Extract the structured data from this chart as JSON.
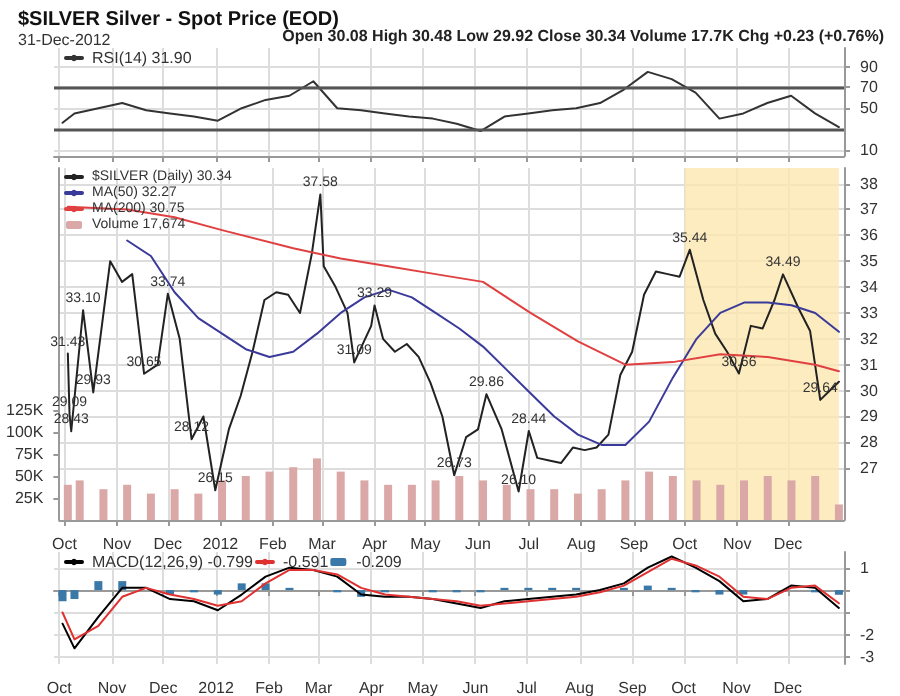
{
  "chart_data": [
    {
      "type": "line",
      "title": "$SILVER Silver - Spot Price (EOD)",
      "subtitle": "31-Dec-2012",
      "annotations": [
        "Open 30.08 High 30.48 Low 29.92 Close 30.34 Volume 17.7K Chg +0.23 (+0.76%)"
      ],
      "x": [
        "2011-10-03",
        "2011-10-10",
        "2011-10-24",
        "2011-11-07",
        "2011-11-21",
        "2011-12-05",
        "2011-12-19",
        "2012-01-02",
        "2012-01-16",
        "2012-01-30",
        "2012-02-13",
        "2012-02-27",
        "2012-03-12",
        "2012-03-26",
        "2012-04-09",
        "2012-04-23",
        "2012-05-07",
        "2012-05-21",
        "2012-06-04",
        "2012-06-18",
        "2012-07-02",
        "2012-07-16",
        "2012-07-30",
        "2012-08-13",
        "2012-08-27",
        "2012-09-10",
        "2012-09-24",
        "2012-10-08",
        "2012-10-22",
        "2012-11-05",
        "2012-11-19",
        "2012-12-03",
        "2012-12-17",
        "2012-12-31"
      ],
      "series": [
        {
          "name": "RSI(14) 31.90",
          "color": "#333333",
          "values": [
            36,
            45,
            50,
            55,
            48,
            45,
            42,
            38,
            50,
            58,
            62,
            76,
            50,
            48,
            45,
            42,
            40,
            35,
            28,
            42,
            45,
            48,
            50,
            55,
            68,
            85,
            78,
            65,
            40,
            45,
            55,
            62,
            45,
            31.9
          ]
        }
      ],
      "ylim": [
        4,
        108
      ],
      "yticks": [
        10,
        50,
        70,
        90
      ],
      "xlim": [
        "2011-09-28",
        "2013-01-03"
      ],
      "xticks": [
        {
          "value": "2011-10-01",
          "label": null
        },
        {
          "value": "2011-11-01",
          "label": null
        },
        {
          "value": "2011-12-01",
          "label": null
        },
        {
          "value": "2012-01-01",
          "label": null
        },
        {
          "value": "2012-02-01",
          "label": null
        },
        {
          "value": "2012-03-01",
          "label": null
        },
        {
          "value": "2012-04-01",
          "label": null
        },
        {
          "value": "2012-05-01",
          "label": null
        },
        {
          "value": "2012-06-01",
          "label": null
        },
        {
          "value": "2012-07-01",
          "label": null
        },
        {
          "value": "2012-08-01",
          "label": null
        },
        {
          "value": "2012-09-01",
          "label": null
        },
        {
          "value": "2012-10-01",
          "label": null
        },
        {
          "value": "2012-11-01",
          "label": null
        },
        {
          "value": "2012-12-01",
          "label": null
        }
      ],
      "ref_lines": [
        {
          "axis": "y",
          "value": 70,
          "color": "#555555"
        },
        {
          "axis": "y",
          "value": 30,
          "color": "#555555"
        }
      ],
      "tick_labels": "y",
      "grid": true,
      "legend": "top left",
      "marker": "none",
      "line_style": "solid"
    },
    {
      "type": "line",
      "series": [
        {
          "name": "$SILVER (Daily) 30.34",
          "color": "#222222",
          "x": [
            "2011-10-03",
            "2011-10-04",
            "2011-10-05",
            "2011-10-12",
            "2011-10-18",
            "2011-10-28",
            "2011-11-04",
            "2011-11-10",
            "2011-11-17",
            "2011-11-25",
            "2011-12-01",
            "2011-12-08",
            "2011-12-15",
            "2011-12-22",
            "2011-12-29",
            "2012-01-06",
            "2012-01-13",
            "2012-01-20",
            "2012-01-27",
            "2012-02-03",
            "2012-02-10",
            "2012-02-17",
            "2012-02-24",
            "2012-02-29",
            "2012-03-02",
            "2012-03-09",
            "2012-03-16",
            "2012-03-20",
            "2012-03-30",
            "2012-04-01",
            "2012-04-06",
            "2012-04-13",
            "2012-04-20",
            "2012-04-27",
            "2012-05-04",
            "2012-05-11",
            "2012-05-18",
            "2012-05-25",
            "2012-06-01",
            "2012-06-06",
            "2012-06-15",
            "2012-06-25",
            "2012-07-01",
            "2012-07-06",
            "2012-07-13",
            "2012-07-20",
            "2012-07-27",
            "2012-08-03",
            "2012-08-10",
            "2012-08-17",
            "2012-08-24",
            "2012-08-31",
            "2012-09-07",
            "2012-09-14",
            "2012-09-21",
            "2012-09-28",
            "2012-10-04",
            "2012-10-12",
            "2012-10-19",
            "2012-10-26",
            "2012-11-02",
            "2012-11-09",
            "2012-11-16",
            "2012-11-23",
            "2012-11-28",
            "2012-12-07",
            "2012-12-14",
            "2012-12-20",
            "2012-12-31"
          ],
          "values": [
            31.43,
            29.09,
            28.43,
            33.1,
            29.93,
            35.0,
            34.2,
            34.5,
            30.65,
            31.0,
            33.74,
            32.0,
            28.12,
            29.0,
            26.15,
            28.5,
            29.8,
            31.5,
            33.5,
            33.8,
            33.7,
            33.0,
            35.3,
            37.58,
            34.8,
            34.0,
            33.0,
            31.09,
            32.5,
            33.29,
            32.0,
            31.5,
            31.8,
            31.3,
            30.3,
            29.0,
            26.73,
            28.2,
            28.5,
            29.86,
            28.5,
            26.1,
            28.44,
            27.4,
            27.3,
            27.2,
            27.8,
            27.7,
            27.8,
            28.3,
            30.6,
            31.5,
            33.7,
            34.6,
            34.5,
            34.4,
            35.44,
            33.5,
            32.2,
            31.5,
            30.66,
            32.5,
            32.4,
            33.5,
            34.49,
            33.2,
            32.3,
            29.64,
            30.34
          ]
        },
        {
          "name": "MA(50) 32.27",
          "color": "#3a3a9a",
          "x": [
            "2011-11-07",
            "2011-11-21",
            "2011-12-05",
            "2011-12-19",
            "2012-01-02",
            "2012-01-16",
            "2012-01-30",
            "2012-02-13",
            "2012-02-27",
            "2012-03-12",
            "2012-03-26",
            "2012-04-09",
            "2012-04-23",
            "2012-05-07",
            "2012-05-21",
            "2012-06-04",
            "2012-06-18",
            "2012-07-02",
            "2012-07-16",
            "2012-07-30",
            "2012-08-13",
            "2012-08-27",
            "2012-09-10",
            "2012-09-24",
            "2012-10-08",
            "2012-10-22",
            "2012-11-05",
            "2012-11-19",
            "2012-12-03",
            "2012-12-17",
            "2012-12-31"
          ],
          "values": [
            35.8,
            35.2,
            33.8,
            32.8,
            32.2,
            31.6,
            31.3,
            31.5,
            32.2,
            33.0,
            33.6,
            33.9,
            33.6,
            33.0,
            32.4,
            31.7,
            30.8,
            29.9,
            29.0,
            28.3,
            27.9,
            27.9,
            28.8,
            30.5,
            32.0,
            33.0,
            33.4,
            33.4,
            33.3,
            33.0,
            32.27
          ]
        },
        {
          "name": "MA(200) 30.75",
          "color": "#e04040",
          "x": [
            "2011-10-03",
            "2011-11-07",
            "2011-12-05",
            "2012-01-02",
            "2012-02-13",
            "2012-03-12",
            "2012-04-09",
            "2012-05-07",
            "2012-06-04",
            "2012-07-02",
            "2012-07-30",
            "2012-08-27",
            "2012-09-24",
            "2012-10-22",
            "2012-11-19",
            "2012-12-17",
            "2012-12-31"
          ],
          "values": [
            37.1,
            37.0,
            36.7,
            36.2,
            35.5,
            35.1,
            34.8,
            34.5,
            34.2,
            33.0,
            31.9,
            31.0,
            31.1,
            31.4,
            31.3,
            31.0,
            30.75
          ]
        },
        {
          "name": "Volume 17,674",
          "type": "bar",
          "axis": "y2",
          "color": "#dba8a8",
          "x": [
            "2011-10-03",
            "2011-10-10",
            "2011-10-24",
            "2011-11-07",
            "2011-11-21",
            "2011-12-05",
            "2011-12-19",
            "2012-01-02",
            "2012-01-16",
            "2012-01-30",
            "2012-02-13",
            "2012-02-27",
            "2012-03-12",
            "2012-03-26",
            "2012-04-09",
            "2012-04-23",
            "2012-05-07",
            "2012-05-21",
            "2012-06-04",
            "2012-06-18",
            "2012-07-02",
            "2012-07-16",
            "2012-07-30",
            "2012-08-13",
            "2012-08-27",
            "2012-09-10",
            "2012-09-24",
            "2012-10-08",
            "2012-10-22",
            "2012-11-05",
            "2012-11-19",
            "2012-12-03",
            "2012-12-17",
            "2012-12-31"
          ],
          "values": [
            40000,
            45000,
            35000,
            40000,
            30000,
            35000,
            30000,
            45000,
            50000,
            55000,
            60000,
            70000,
            55000,
            45000,
            40000,
            40000,
            45000,
            50000,
            45000,
            40000,
            35000,
            35000,
            30000,
            35000,
            45000,
            55000,
            50000,
            45000,
            40000,
            45000,
            50000,
            45000,
            50000,
            17674
          ]
        }
      ],
      "ylim": [
        25,
        38.6
      ],
      "yticks": [
        27,
        28,
        29,
        30,
        31,
        32,
        33,
        34,
        35,
        36,
        37,
        38
      ],
      "y2lim": [
        0,
        400000
      ],
      "y2ticks": [
        {
          "value": 25000,
          "label": "25K"
        },
        {
          "value": 50000,
          "label": "50K"
        },
        {
          "value": 75000,
          "label": "75K"
        },
        {
          "value": 100000,
          "label": "100K"
        },
        {
          "value": 125000,
          "label": "125K"
        }
      ],
      "xlim": [
        "2011-09-28",
        "2013-01-03"
      ],
      "xticks": [
        {
          "value": "2011-10-01",
          "label": "Oct"
        },
        {
          "value": "2011-11-01",
          "label": "Nov"
        },
        {
          "value": "2011-12-01",
          "label": "Dec"
        },
        {
          "value": "2012-01-01",
          "label": "2012"
        },
        {
          "value": "2012-02-01",
          "label": "Feb"
        },
        {
          "value": "2012-03-01",
          "label": "Mar"
        },
        {
          "value": "2012-04-01",
          "label": "Apr"
        },
        {
          "value": "2012-05-01",
          "label": "May"
        },
        {
          "value": "2012-06-01",
          "label": "Jun"
        },
        {
          "value": "2012-07-01",
          "label": "Jul"
        },
        {
          "value": "2012-08-01",
          "label": "Aug"
        },
        {
          "value": "2012-09-01",
          "label": "Sep"
        },
        {
          "value": "2012-10-01",
          "label": "Oct"
        },
        {
          "value": "2012-11-01",
          "label": "Nov"
        },
        {
          "value": "2012-12-01",
          "label": "Dec"
        }
      ],
      "bands": [
        {
          "axis": "x",
          "from": "2012-10-01",
          "to": "2012-12-31",
          "color": "#fde7b0"
        }
      ],
      "annotations": [
        {
          "text": "31.43",
          "x": "2011-10-03",
          "y": 31.43
        },
        {
          "text": "29.09",
          "x": "2011-10-04",
          "y": 29.09
        },
        {
          "text": "28.43",
          "x": "2011-10-05",
          "y": 28.43
        },
        {
          "text": "33.10",
          "x": "2011-10-12",
          "y": 33.1
        },
        {
          "text": "29.93",
          "x": "2011-10-18",
          "y": 29.93
        },
        {
          "text": "30.65",
          "x": "2011-11-17",
          "y": 30.65
        },
        {
          "text": "33.74",
          "x": "2011-12-01",
          "y": 33.74
        },
        {
          "text": "28.12",
          "x": "2011-12-15",
          "y": 28.12
        },
        {
          "text": "26.15",
          "x": "2011-12-29",
          "y": 26.15
        },
        {
          "text": "37.58",
          "x": "2012-02-29",
          "y": 37.58
        },
        {
          "text": "31.09",
          "x": "2012-03-20",
          "y": 31.09
        },
        {
          "text": "33.29",
          "x": "2012-04-01",
          "y": 33.29
        },
        {
          "text": "26.73",
          "x": "2012-05-18",
          "y": 26.73
        },
        {
          "text": "29.86",
          "x": "2012-06-06",
          "y": 29.86
        },
        {
          "text": "26.10",
          "x": "2012-06-25",
          "y": 26.1
        },
        {
          "text": "28.44",
          "x": "2012-07-01",
          "y": 28.44
        },
        {
          "text": "35.44",
          "x": "2012-10-04",
          "y": 35.44
        },
        {
          "text": "30.66",
          "x": "2012-11-02",
          "y": 30.66
        },
        {
          "text": "34.49",
          "x": "2012-11-28",
          "y": 34.49
        },
        {
          "text": "29.64",
          "x": "2012-12-20",
          "y": 29.64
        }
      ],
      "grid": true,
      "legend": "top left",
      "marker": "none",
      "line_style": "solid"
    },
    {
      "type": "line",
      "x": [
        "2011-10-03",
        "2011-10-10",
        "2011-10-24",
        "2011-11-07",
        "2011-11-21",
        "2011-12-05",
        "2011-12-19",
        "2012-01-02",
        "2012-01-16",
        "2012-01-30",
        "2012-02-13",
        "2012-02-27",
        "2012-03-12",
        "2012-03-26",
        "2012-04-09",
        "2012-04-23",
        "2012-05-07",
        "2012-05-21",
        "2012-06-04",
        "2012-06-18",
        "2012-07-02",
        "2012-07-16",
        "2012-07-30",
        "2012-08-13",
        "2012-08-27",
        "2012-09-10",
        "2012-09-24",
        "2012-10-08",
        "2012-10-22",
        "2012-11-05",
        "2012-11-19",
        "2012-12-03",
        "2012-12-17",
        "2012-12-31"
      ],
      "series": [
        {
          "name": "MACD(12,26,9) -0.799",
          "color": "#000000",
          "values": [
            -1.5,
            -2.6,
            -1.2,
            0.1,
            0.1,
            -0.4,
            -0.5,
            -0.9,
            -0.2,
            0.6,
            1.0,
            0.9,
            0.6,
            -0.2,
            -0.3,
            -0.3,
            -0.4,
            -0.6,
            -0.8,
            -0.5,
            -0.4,
            -0.3,
            -0.2,
            0.0,
            0.3,
            1.0,
            1.5,
            1.0,
            0.4,
            -0.5,
            -0.4,
            0.2,
            0.1,
            -0.799
          ]
        },
        {
          "name": "-0.591",
          "color": "#e03030",
          "values": [
            -1.0,
            -2.2,
            -1.6,
            -0.3,
            0.1,
            -0.2,
            -0.4,
            -0.7,
            -0.5,
            0.3,
            0.9,
            0.9,
            0.7,
            0.1,
            -0.2,
            -0.3,
            -0.4,
            -0.5,
            -0.7,
            -0.6,
            -0.5,
            -0.4,
            -0.3,
            -0.1,
            0.2,
            0.8,
            1.4,
            1.1,
            0.6,
            -0.3,
            -0.4,
            0.1,
            0.2,
            -0.591
          ]
        },
        {
          "name": "-0.209",
          "type": "bar",
          "color": "#3a78a8",
          "values": [
            -0.5,
            -0.4,
            0.4,
            0.4,
            0.0,
            -0.2,
            -0.1,
            -0.2,
            0.3,
            0.3,
            0.1,
            0.0,
            -0.1,
            -0.3,
            -0.1,
            0.0,
            -0.1,
            -0.1,
            -0.1,
            0.1,
            0.1,
            0.1,
            0.1,
            null,
            0.1,
            0.2,
            0.1,
            -0.1,
            -0.2,
            -0.2,
            0.0,
            null,
            -0.1,
            -0.209
          ]
        }
      ],
      "ylim": [
        -3.3,
        1.7
      ],
      "yticks": [
        1,
        {
          "value": 0,
          "label": null
        },
        {
          "value": -1,
          "label": null
        },
        -2,
        -3
      ],
      "xlim": [
        "2011-09-28",
        "2013-01-03"
      ],
      "xticks": [
        {
          "value": "2011-10-01",
          "label": "Oct"
        },
        {
          "value": "2011-11-01",
          "label": "Nov"
        },
        {
          "value": "2011-12-01",
          "label": "Dec"
        },
        {
          "value": "2012-01-01",
          "label": "2012"
        },
        {
          "value": "2012-02-01",
          "label": "Feb"
        },
        {
          "value": "2012-03-01",
          "label": "Mar"
        },
        {
          "value": "2012-04-01",
          "label": "Apr"
        },
        {
          "value": "2012-05-01",
          "label": "May"
        },
        {
          "value": "2012-06-01",
          "label": "Jun"
        },
        {
          "value": "2012-07-01",
          "label": "Jul"
        },
        {
          "value": "2012-08-01",
          "label": "Aug"
        },
        {
          "value": "2012-09-01",
          "label": "Sep"
        },
        {
          "value": "2012-10-01",
          "label": "Oct"
        },
        {
          "value": "2012-11-01",
          "label": "Nov"
        },
        {
          "value": "2012-12-01",
          "label": "Dec"
        }
      ],
      "grid": true,
      "legend": "top left",
      "marker": "none",
      "line_style": "solid"
    }
  ]
}
